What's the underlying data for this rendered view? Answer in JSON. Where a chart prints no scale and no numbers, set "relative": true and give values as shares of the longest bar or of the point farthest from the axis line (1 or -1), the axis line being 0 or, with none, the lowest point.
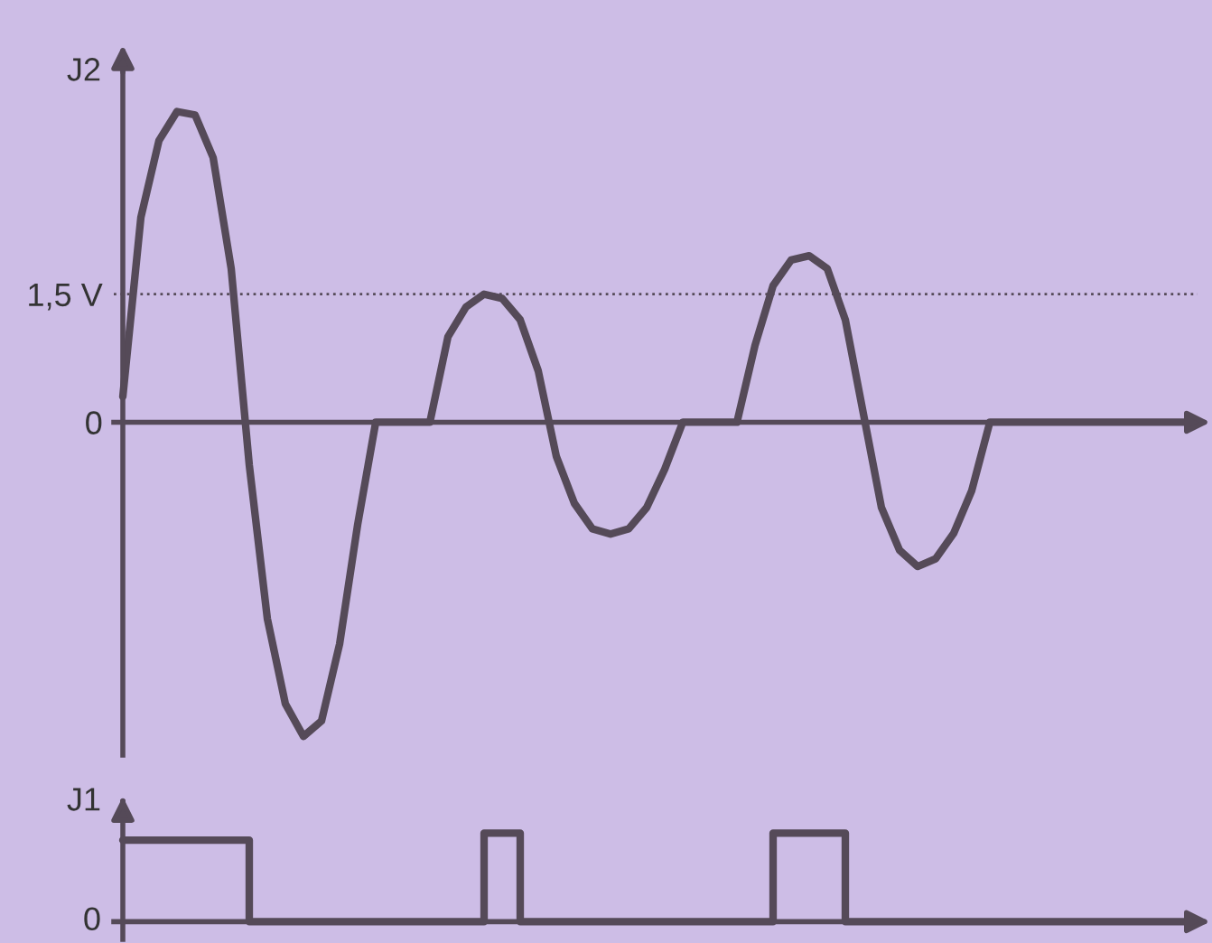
{
  "chart_data": [
    {
      "type": "line",
      "ylabel": "J2",
      "categories": [
        null,
        null,
        null,
        null,
        null,
        null,
        null,
        null,
        null,
        null,
        null,
        null,
        null,
        null,
        null,
        null,
        null,
        null,
        null,
        null,
        null,
        null,
        null,
        null,
        null,
        null,
        null,
        null,
        null,
        null,
        null,
        null,
        null,
        null,
        null,
        null,
        null,
        null,
        null,
        null,
        null,
        null,
        null,
        null,
        null,
        null,
        null,
        null,
        null,
        null,
        null,
        null,
        null,
        null,
        null,
        null,
        null,
        null,
        null,
        null
      ],
      "series": [
        {
          "color": "#554a58",
          "values": [
            0.3,
            2.4,
            3.3,
            3.64,
            3.6,
            3.1,
            1.8,
            -0.5,
            -2.3,
            -3.3,
            -3.68,
            -3.5,
            -2.6,
            -1.2,
            0,
            0,
            0,
            0,
            1.0,
            1.35,
            1.5,
            1.45,
            1.2,
            0.6,
            -0.4,
            -0.95,
            -1.25,
            -1.31,
            -1.25,
            -1.0,
            -0.55,
            0,
            0,
            0,
            0,
            0.9,
            1.6,
            1.9,
            1.95,
            1.8,
            1.2,
            0.1,
            -1.0,
            -1.5,
            -1.69,
            -1.6,
            -1.3,
            -0.8,
            0,
            0,
            0,
            0,
            0,
            0,
            0,
            0,
            0,
            0,
            0,
            0
          ]
        }
      ],
      "ylim": [
        -3.9,
        4.1
      ],
      "yticks": [
        {
          "value": 1.5,
          "label": "1,5 V"
        },
        0
      ],
      "tick_labels": "y",
      "grid": false,
      "legend": false,
      "ref_lines": [
        {
          "axis": "y",
          "value": 1.5,
          "line_style": "dotted",
          "color": "#554a58"
        }
      ]
    },
    {
      "type": "step",
      "ylabel": "J1",
      "relative": true,
      "categories": [
        null,
        null,
        null,
        null,
        null,
        null,
        null,
        null,
        null,
        null,
        null,
        null,
        null,
        null,
        null,
        null,
        null,
        null,
        null,
        null,
        null,
        null,
        null,
        null,
        null,
        null,
        null,
        null,
        null,
        null,
        null,
        null,
        null,
        null,
        null,
        null,
        null,
        null,
        null,
        null,
        null,
        null,
        null,
        null,
        null,
        null,
        null,
        null,
        null,
        null,
        null,
        null,
        null,
        null,
        null,
        null,
        null,
        null,
        null,
        null
      ],
      "series": [
        {
          "color": "#554a58",
          "values": [
            0.92,
            0.92,
            0.92,
            0.92,
            0.92,
            0.92,
            0.92,
            0,
            0,
            0,
            0,
            0,
            0,
            0,
            0,
            0,
            0,
            0,
            0,
            0,
            1,
            1,
            0,
            0,
            0,
            0,
            0,
            0,
            0,
            0,
            0,
            0,
            0,
            0,
            0,
            0,
            1,
            1,
            1,
            1,
            0,
            0,
            0,
            0,
            0,
            0,
            0,
            0,
            0,
            0,
            0,
            0,
            0,
            0,
            0,
            0,
            0,
            0,
            0,
            0
          ]
        }
      ],
      "annotations": [
        "0"
      ],
      "tick_labels": false,
      "grid": false,
      "legend": false
    }
  ]
}
